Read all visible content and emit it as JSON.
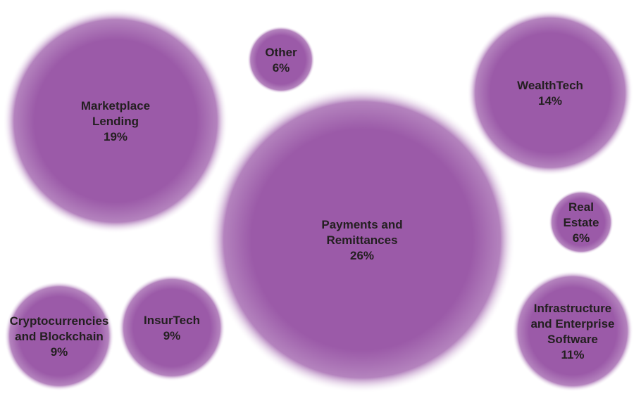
{
  "chart_data": {
    "type": "bubble",
    "colors": {
      "bubble_center": "#9b5aa8",
      "bubble_edge": "#ffffff",
      "label": "#231f20"
    },
    "bubbles": [
      {
        "lines": [
          "Marketplace",
          "Lending"
        ],
        "value_label": "19%",
        "value": 19
      },
      {
        "lines": [
          "Other"
        ],
        "value_label": "6%",
        "value": 6
      },
      {
        "lines": [
          "WealthTech"
        ],
        "value_label": "14%",
        "value": 14
      },
      {
        "lines": [
          "Payments and",
          "Remittances"
        ],
        "value_label": "26%",
        "value": 26
      },
      {
        "lines": [
          "Real",
          "Estate"
        ],
        "value_label": "6%",
        "value": 6
      },
      {
        "lines": [
          "Cryptocurrencies",
          "and Blockchain"
        ],
        "value_label": "9%",
        "value": 9
      },
      {
        "lines": [
          "InsurTech"
        ],
        "value_label": "9%",
        "value": 9
      },
      {
        "lines": [
          "Infrastructure",
          "and Enterprise",
          "Software"
        ],
        "value_label": "11%",
        "value": 11
      }
    ]
  }
}
